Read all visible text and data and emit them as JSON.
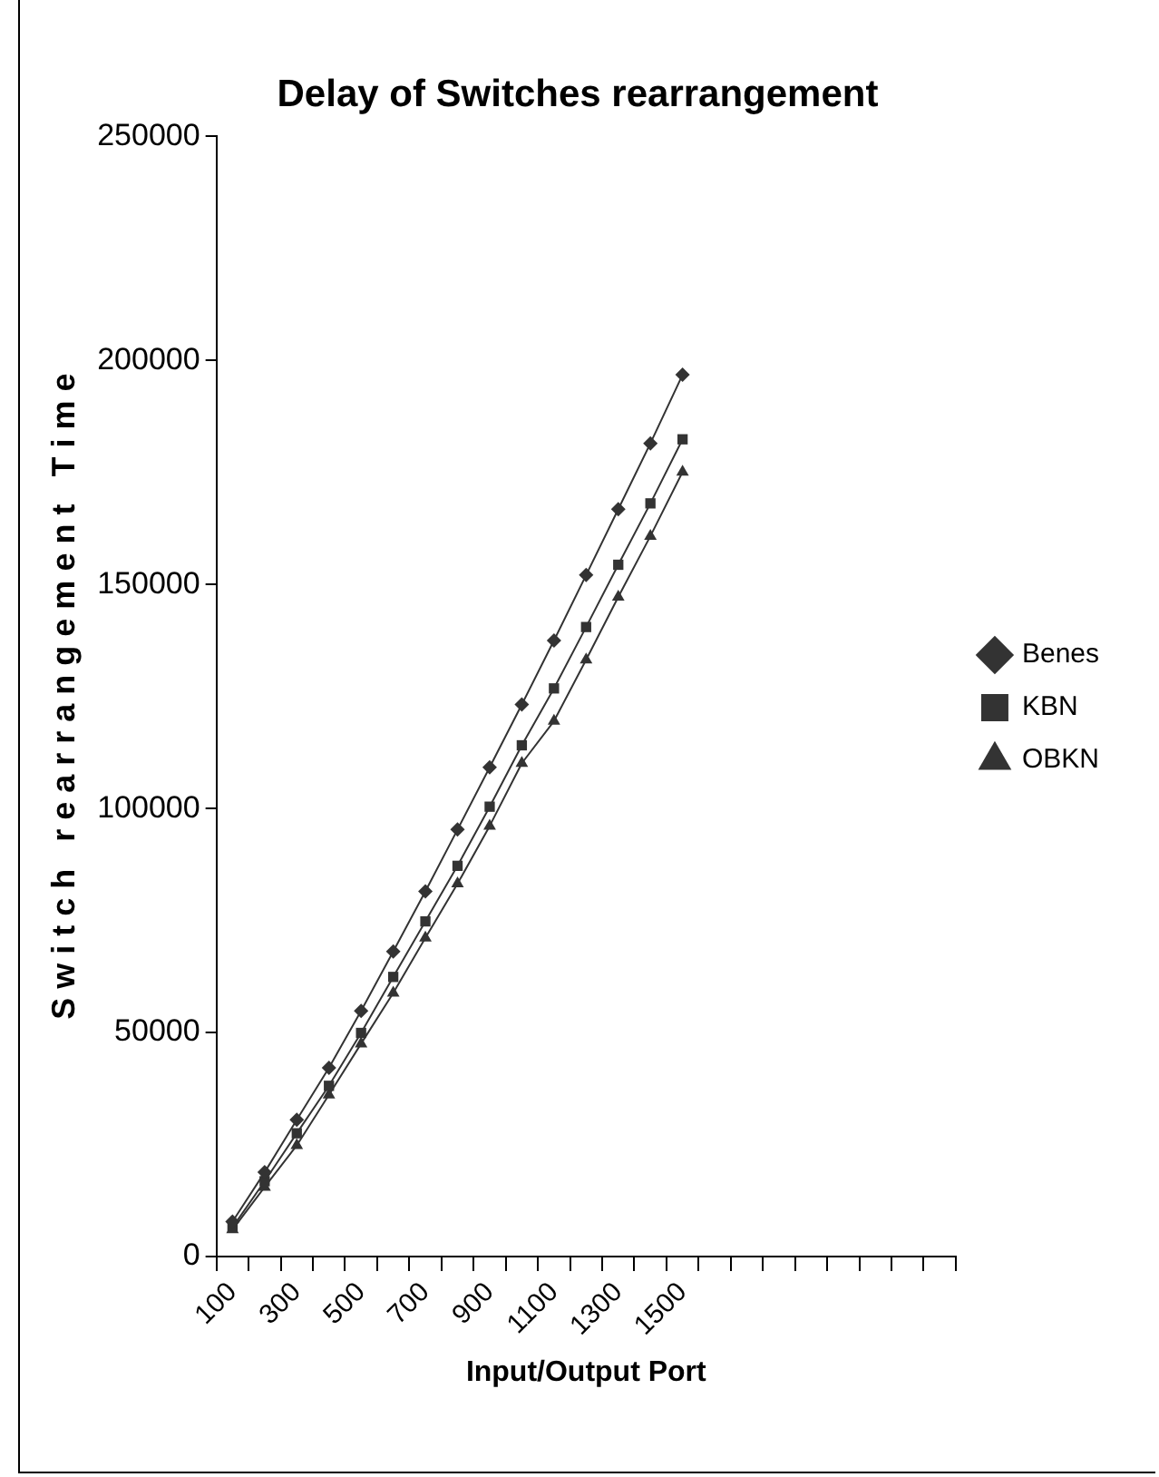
{
  "chart_data": {
    "type": "line",
    "title": "Delay of Switches rearrangement",
    "xlabel": "Input/Output Port",
    "ylabel": "S w i t c h   r e a r r a n g e m e n t   T i m e",
    "categories": [
      "100",
      null,
      "300",
      null,
      "500",
      null,
      "700",
      null,
      "900",
      null,
      "1100",
      null,
      "1300",
      null,
      "1500",
      null,
      null,
      null,
      null,
      null,
      null,
      null,
      null
    ],
    "series": [
      {
        "name": "Benes",
        "color": "#333333",
        "marker": "diamond",
        "values": [
          7800,
          18800,
          30500,
          42100,
          54800,
          68100,
          81500,
          95300,
          109200,
          123200,
          137500,
          152100,
          166800,
          181500,
          196800,
          null,
          null,
          null,
          null,
          null,
          null,
          null,
          null
        ]
      },
      {
        "name": "KBN",
        "color": "#333333",
        "marker": "square",
        "values": [
          6500,
          16800,
          27500,
          38100,
          49900,
          62400,
          74800,
          87200,
          100400,
          114100,
          126800,
          140500,
          154400,
          168100,
          182400,
          null,
          null,
          null,
          null,
          null,
          null,
          null,
          null
        ]
      },
      {
        "name": "OBKN",
        "color": "#333333",
        "marker": "triangle",
        "values": [
          6000,
          15500,
          24800,
          36100,
          47500,
          58800,
          71100,
          83200,
          96100,
          110100,
          119500,
          133200,
          147200,
          160800,
          175100,
          null,
          null,
          null,
          null,
          null,
          null,
          null,
          null
        ]
      }
    ],
    "ylim": [
      0,
      250000
    ],
    "yticks": [
      0,
      50000,
      100000,
      150000,
      200000,
      250000
    ],
    "grid": false,
    "legend": "right",
    "line_style": "solid"
  }
}
